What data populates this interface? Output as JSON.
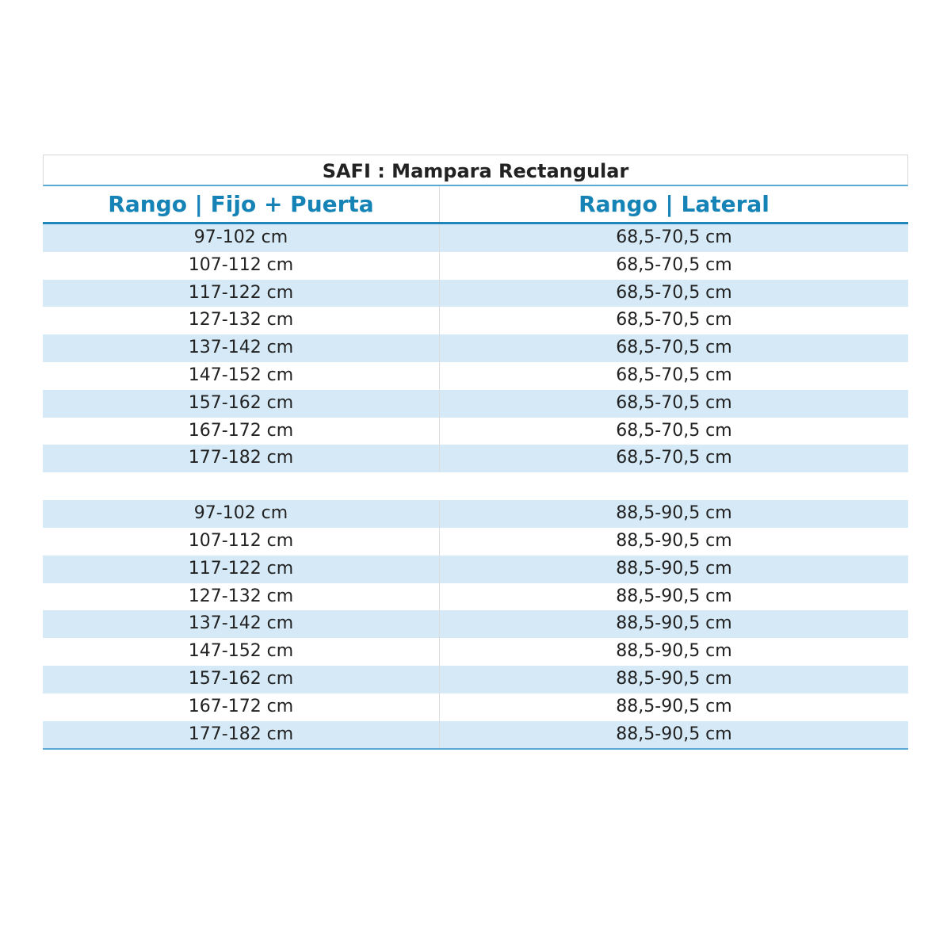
{
  "title": "SAFI : Mampara Rectangular",
  "headers": [
    "Rango | Fijo + Puerta",
    "Rango | Lateral"
  ],
  "groups": [
    {
      "rows": [
        [
          "97-102 cm",
          "68,5-70,5 cm"
        ],
        [
          "107-112 cm",
          "68,5-70,5 cm"
        ],
        [
          "117-122 cm",
          "68,5-70,5 cm"
        ],
        [
          "127-132 cm",
          "68,5-70,5 cm"
        ],
        [
          "137-142 cm",
          "68,5-70,5 cm"
        ],
        [
          "147-152 cm",
          "68,5-70,5 cm"
        ],
        [
          "157-162 cm",
          "68,5-70,5 cm"
        ],
        [
          "167-172 cm",
          "68,5-70,5 cm"
        ],
        [
          "177-182 cm",
          "68,5-70,5 cm"
        ]
      ]
    },
    {
      "rows": [
        [
          "97-102 cm",
          "88,5-90,5 cm"
        ],
        [
          "107-112 cm",
          "88,5-90,5 cm"
        ],
        [
          "117-122 cm",
          "88,5-90,5 cm"
        ],
        [
          "127-132 cm",
          "88,5-90,5 cm"
        ],
        [
          "137-142 cm",
          "88,5-90,5 cm"
        ],
        [
          "147-152 cm",
          "88,5-90,5 cm"
        ],
        [
          "157-162 cm",
          "88,5-90,5 cm"
        ],
        [
          "167-172 cm",
          "88,5-90,5 cm"
        ],
        [
          "177-182 cm",
          "88,5-90,5 cm"
        ]
      ]
    }
  ],
  "colors": {
    "header_text": "#1583b5",
    "row_alt": "#d5e9f7"
  }
}
